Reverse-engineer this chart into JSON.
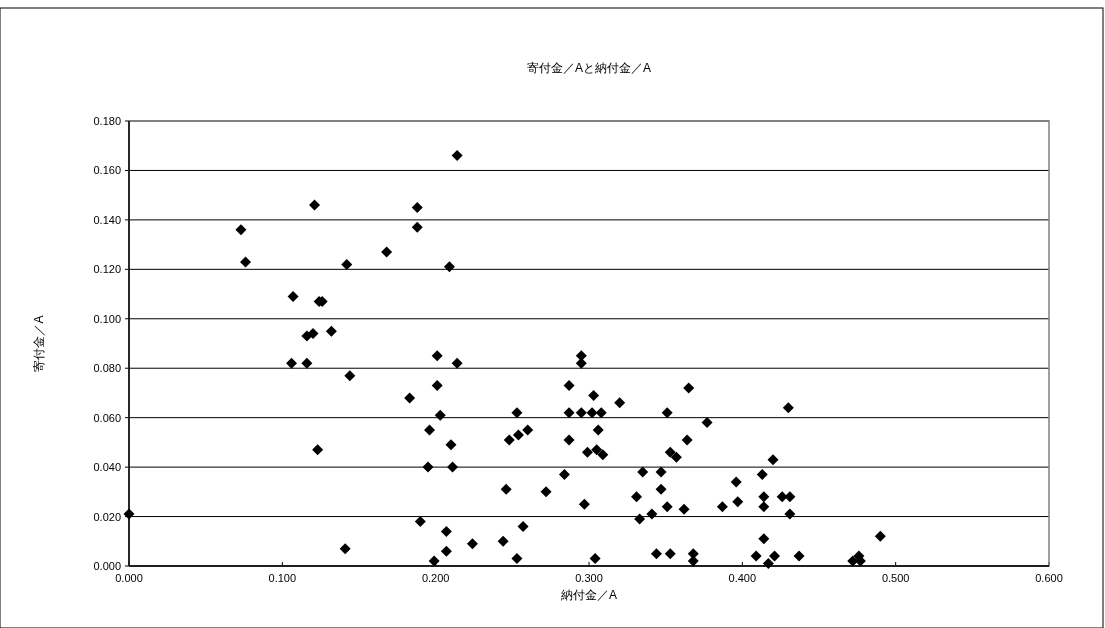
{
  "chart_data": {
    "type": "scatter",
    "title": "寄付金／Aと納付金／A",
    "xlabel": "納付金／A",
    "ylabel": "寄付金／A",
    "color": "#000000",
    "marker": "diamond",
    "grid": "y",
    "xlim": [
      0,
      0.6
    ],
    "ylim": [
      0,
      0.18
    ],
    "xticks": [
      {
        "value": 0,
        "label": "0.000"
      },
      {
        "value": 0.1,
        "label": "0.100"
      },
      {
        "value": 0.2,
        "label": "0.200"
      },
      {
        "value": 0.3,
        "label": "0.300"
      },
      {
        "value": 0.4,
        "label": "0.400"
      },
      {
        "value": 0.5,
        "label": "0.500"
      },
      {
        "value": 0.6,
        "label": "0.600"
      }
    ],
    "yticks": [
      {
        "value": 0,
        "label": "0.000"
      },
      {
        "value": 0.02,
        "label": "0.020"
      },
      {
        "value": 0.04,
        "label": "0.040"
      },
      {
        "value": 0.06,
        "label": "0.060"
      },
      {
        "value": 0.08,
        "label": "0.080"
      },
      {
        "value": 0.1,
        "label": "0.100"
      },
      {
        "value": 0.12,
        "label": "0.120"
      },
      {
        "value": 0.14,
        "label": "0.140"
      },
      {
        "value": 0.16,
        "label": "0.160"
      },
      {
        "value": 0.18,
        "label": "0.180"
      }
    ],
    "x": [
      0.0,
      0.073,
      0.076,
      0.107,
      0.106,
      0.116,
      0.116,
      0.12,
      0.121,
      0.124,
      0.126,
      0.123,
      0.132,
      0.142,
      0.144,
      0.141,
      0.168,
      0.183,
      0.188,
      0.188,
      0.196,
      0.195,
      0.19,
      0.201,
      0.201,
      0.203,
      0.207,
      0.207,
      0.199,
      0.209,
      0.21,
      0.211,
      0.214,
      0.214,
      0.224,
      0.244,
      0.246,
      0.248,
      0.254,
      0.253,
      0.253,
      0.257,
      0.26,
      0.272,
      0.284,
      0.287,
      0.287,
      0.287,
      0.295,
      0.295,
      0.295,
      0.297,
      0.299,
      0.303,
      0.302,
      0.305,
      0.306,
      0.309,
      0.308,
      0.304,
      0.32,
      0.335,
      0.347,
      0.333,
      0.341,
      0.331,
      0.347,
      0.351,
      0.351,
      0.353,
      0.357,
      0.365,
      0.364,
      0.362,
      0.377,
      0.344,
      0.353,
      0.368,
      0.368,
      0.387,
      0.396,
      0.397,
      0.413,
      0.414,
      0.414,
      0.42,
      0.414,
      0.409,
      0.417,
      0.421,
      0.426,
      0.43,
      0.431,
      0.431,
      0.437,
      0.49,
      0.472,
      0.476,
      0.477
    ],
    "values": [
      0.021,
      0.136,
      0.123,
      0.109,
      0.082,
      0.082,
      0.093,
      0.094,
      0.146,
      0.107,
      0.107,
      0.047,
      0.095,
      0.122,
      0.077,
      0.007,
      0.127,
      0.068,
      0.145,
      0.137,
      0.055,
      0.04,
      0.018,
      0.085,
      0.073,
      0.061,
      0.014,
      0.006,
      0.002,
      0.121,
      0.049,
      0.04,
      0.166,
      0.082,
      0.009,
      0.01,
      0.031,
      0.051,
      0.053,
      0.062,
      0.003,
      0.016,
      0.055,
      0.03,
      0.037,
      0.073,
      0.062,
      0.051,
      0.085,
      0.082,
      0.062,
      0.025,
      0.046,
      0.069,
      0.062,
      0.047,
      0.055,
      0.045,
      0.062,
      0.003,
      0.066,
      0.038,
      0.038,
      0.019,
      0.021,
      0.028,
      0.031,
      0.024,
      0.062,
      0.046,
      0.044,
      0.072,
      0.051,
      0.023,
      0.058,
      0.005,
      0.005,
      0.005,
      0.002,
      0.024,
      0.034,
      0.026,
      0.037,
      0.028,
      0.024,
      0.043,
      0.011,
      0.004,
      0.001,
      0.004,
      0.028,
      0.064,
      0.028,
      0.021,
      0.004,
      0.012,
      0.002,
      0.004,
      0.002
    ]
  }
}
